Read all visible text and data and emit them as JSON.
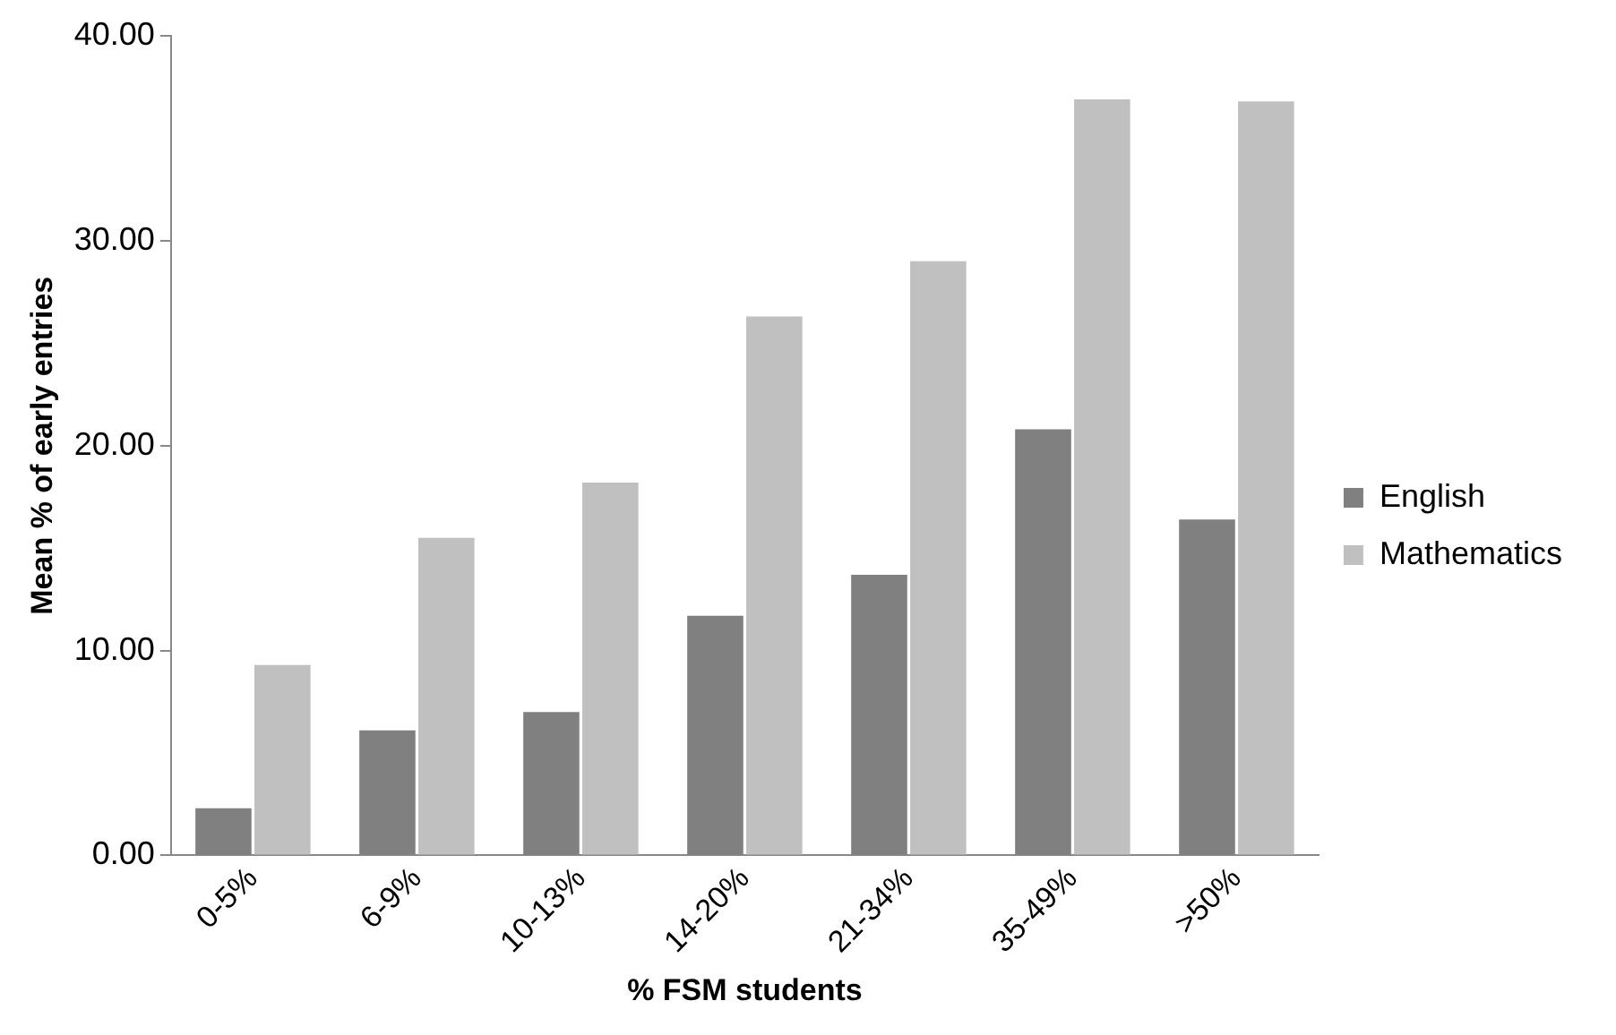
{
  "chart_data": {
    "type": "bar",
    "xlabel": "% FSM students",
    "ylabel": "Mean % of early entries",
    "categories": [
      "0-5%",
      "6-9%",
      "10-13%",
      "14-20%",
      "21-34%",
      "35-49%",
      ">50%"
    ],
    "series": [
      {
        "name": "English",
        "color": "#808080",
        "values": [
          2.3,
          6.1,
          7.0,
          11.7,
          13.7,
          20.8,
          16.4
        ]
      },
      {
        "name": "Mathematics",
        "color": "#c0c0c0",
        "values": [
          9.3,
          15.5,
          18.2,
          26.3,
          29.0,
          36.9,
          36.8
        ]
      }
    ],
    "ylim": [
      0,
      40
    ],
    "yticks": [
      {
        "value": 0,
        "label": "0.00"
      },
      {
        "value": 10,
        "label": "10.00"
      },
      {
        "value": 20,
        "label": "20.00"
      },
      {
        "value": 30,
        "label": "30.00"
      },
      {
        "value": 40,
        "label": "40.00"
      }
    ],
    "grid": false,
    "legend": "right"
  }
}
